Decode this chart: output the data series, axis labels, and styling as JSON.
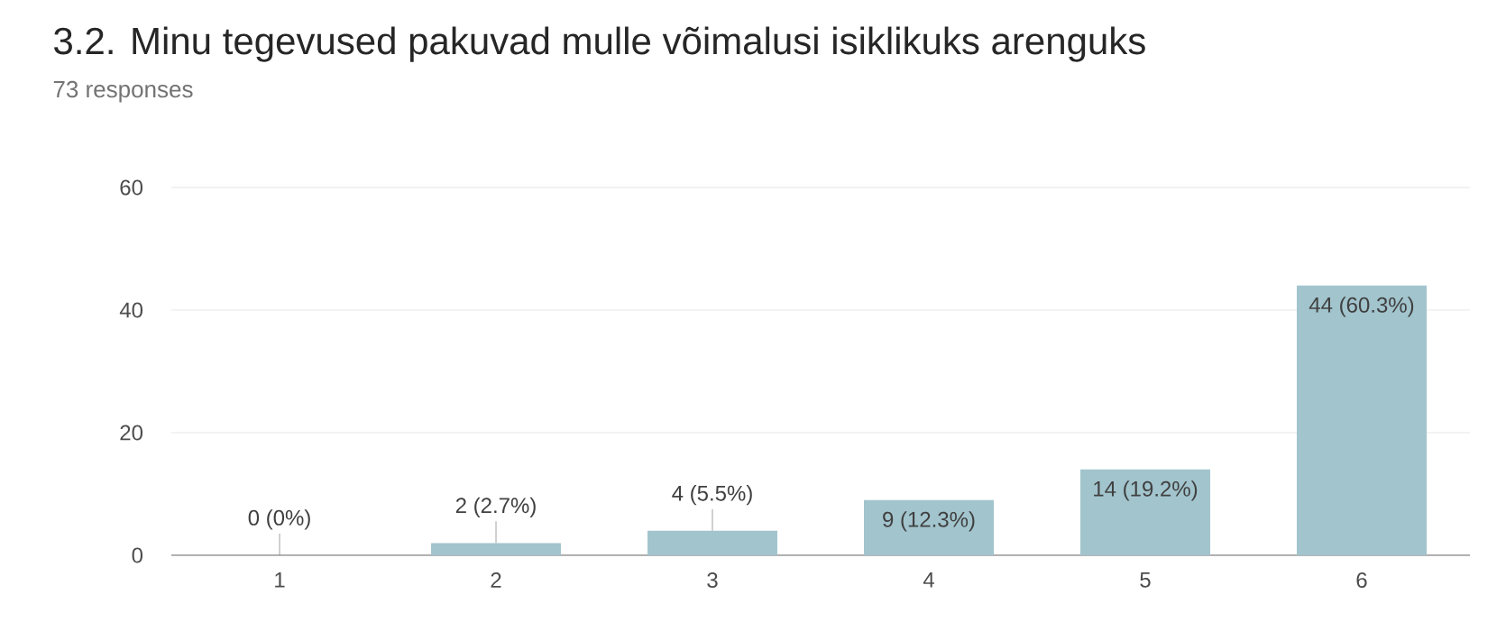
{
  "chart_data": {
    "type": "bar",
    "title": "3.2. Minu tegevused pakuvad mulle võimalusi isiklikuks arenguks",
    "subtitle": "73 responses",
    "categories": [
      "1",
      "2",
      "3",
      "4",
      "5",
      "6"
    ],
    "values": [
      0,
      2,
      4,
      9,
      14,
      44
    ],
    "value_labels": [
      "0 (0%)",
      "2 (2.7%)",
      "4 (5.5%)",
      "9 (12.3%)",
      "14 (19.2%)",
      "44 (60.3%)"
    ],
    "color": "#a2c4cd",
    "ylim": [
      0,
      60
    ],
    "yticks": [
      0,
      20,
      40,
      60
    ],
    "grid": "y"
  }
}
